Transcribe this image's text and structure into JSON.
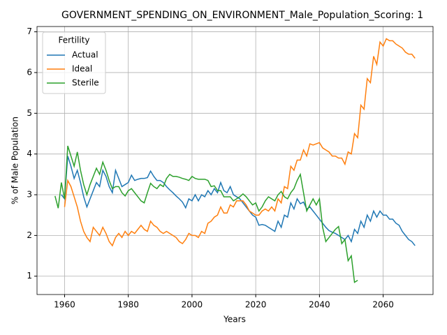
{
  "chart_data": {
    "type": "line",
    "title": "GOVERNMENT_SPENDING_ON_ENVIRONMENT_Male_Population_Scoring: 1",
    "xlabel": "Years",
    "ylabel": "% of Male Population",
    "legend_title": "Fertility",
    "legend": "upper left",
    "grid": true,
    "xlim": [
      1951.35,
      2075.65
    ],
    "xticks": [
      1960,
      1980,
      2000,
      2020,
      2040,
      2060
    ],
    "ylim": [
      0.55,
      7.13
    ],
    "yticks": [
      1,
      2,
      3,
      4,
      5,
      6,
      7
    ],
    "x": [
      1957,
      1958,
      1959,
      1960,
      1961,
      1962,
      1963,
      1964,
      1965,
      1966,
      1967,
      1968,
      1969,
      1970,
      1971,
      1972,
      1973,
      1974,
      1975,
      1976,
      1977,
      1978,
      1979,
      1980,
      1981,
      1982,
      1983,
      1984,
      1985,
      1986,
      1987,
      1988,
      1989,
      1990,
      1991,
      1992,
      1993,
      1994,
      1995,
      1996,
      1997,
      1998,
      1999,
      2000,
      2001,
      2002,
      2003,
      2004,
      2005,
      2006,
      2007,
      2008,
      2009,
      2010,
      2011,
      2012,
      2013,
      2014,
      2015,
      2016,
      2017,
      2018,
      2019,
      2020,
      2021,
      2022,
      2023,
      2024,
      2025,
      2026,
      2027,
      2028,
      2029,
      2030,
      2031,
      2032,
      2033,
      2034,
      2035,
      2036,
      2037,
      2038,
      2039,
      2040,
      2041,
      2042,
      2043,
      2044,
      2045,
      2046,
      2047,
      2048,
      2049,
      2050,
      2051,
      2052,
      2053,
      2054,
      2055,
      2056,
      2057,
      2058,
      2059,
      2060,
      2061,
      2062,
      2063,
      2064,
      2065,
      2066,
      2067,
      2068,
      2069,
      2070
    ],
    "series": [
      {
        "name": "Actual",
        "color": "#1f77b4",
        "values": [
          null,
          null,
          3.0,
          2.9,
          3.95,
          3.7,
          3.4,
          3.6,
          3.3,
          2.95,
          2.7,
          2.9,
          3.1,
          3.3,
          3.2,
          3.6,
          3.45,
          3.2,
          3.05,
          3.6,
          3.4,
          3.2,
          3.25,
          3.3,
          3.48,
          3.35,
          3.38,
          3.4,
          3.4,
          3.42,
          3.58,
          3.45,
          3.35,
          3.35,
          3.3,
          3.2,
          3.12,
          3.05,
          2.97,
          2.9,
          2.82,
          2.68,
          2.9,
          2.85,
          3.0,
          2.85,
          3.0,
          2.95,
          3.1,
          3.0,
          3.15,
          3.05,
          3.3,
          3.1,
          3.05,
          3.2,
          3.0,
          2.95,
          2.9,
          2.8,
          2.7,
          2.6,
          2.5,
          2.45,
          2.25,
          2.27,
          2.25,
          2.2,
          2.15,
          2.1,
          2.35,
          2.2,
          2.5,
          2.45,
          2.8,
          2.65,
          2.9,
          2.78,
          2.82,
          2.65,
          2.7,
          2.6,
          2.5,
          2.4,
          2.3,
          2.2,
          2.12,
          2.08,
          2.05,
          2.0,
          1.95,
          1.9,
          2.0,
          1.85,
          2.15,
          2.05,
          2.35,
          2.2,
          2.5,
          2.35,
          2.6,
          2.45,
          2.6,
          2.5,
          2.5,
          2.4,
          2.4,
          2.3,
          2.25,
          2.1,
          2.0,
          1.9,
          1.85,
          1.75
        ]
      },
      {
        "name": "Ideal",
        "color": "#ff7f0e",
        "values": [
          null,
          null,
          null,
          2.7,
          3.35,
          3.2,
          2.95,
          2.7,
          2.35,
          2.1,
          1.95,
          1.85,
          2.2,
          2.1,
          2.0,
          2.2,
          2.05,
          1.85,
          1.75,
          1.95,
          2.05,
          1.95,
          2.1,
          2.0,
          2.1,
          2.05,
          2.15,
          2.25,
          2.15,
          2.1,
          2.35,
          2.25,
          2.2,
          2.1,
          2.05,
          2.1,
          2.05,
          2.0,
          1.95,
          1.85,
          1.8,
          1.9,
          2.05,
          2.0,
          2.0,
          1.95,
          2.1,
          2.05,
          2.3,
          2.35,
          2.45,
          2.5,
          2.7,
          2.55,
          2.55,
          2.75,
          2.7,
          2.85,
          2.85,
          2.85,
          2.75,
          2.6,
          2.55,
          2.5,
          2.5,
          2.6,
          2.65,
          2.6,
          2.7,
          2.6,
          2.9,
          2.8,
          3.2,
          3.15,
          3.7,
          3.6,
          3.85,
          3.85,
          4.1,
          3.95,
          4.25,
          4.22,
          4.25,
          4.28,
          4.15,
          4.1,
          4.05,
          3.95,
          3.95,
          3.9,
          3.9,
          3.75,
          4.05,
          4.0,
          4.5,
          4.4,
          5.2,
          5.1,
          5.85,
          5.75,
          6.4,
          6.2,
          6.75,
          6.65,
          6.83,
          6.78,
          6.78,
          6.7,
          6.65,
          6.6,
          6.5,
          6.45,
          6.45,
          6.35
        ]
      },
      {
        "name": "Sterile",
        "color": "#2ca02c",
        "values": [
          2.97,
          2.67,
          3.3,
          2.9,
          4.2,
          3.95,
          3.7,
          4.05,
          3.6,
          3.25,
          3.0,
          3.25,
          3.45,
          3.65,
          3.5,
          3.8,
          3.6,
          3.35,
          3.15,
          3.2,
          3.2,
          3.05,
          2.97,
          3.1,
          3.15,
          3.05,
          2.95,
          2.85,
          2.8,
          3.05,
          3.28,
          3.2,
          3.15,
          3.25,
          3.2,
          3.4,
          3.5,
          3.45,
          3.45,
          3.43,
          3.4,
          3.38,
          3.35,
          3.45,
          3.4,
          3.38,
          3.38,
          3.38,
          3.35,
          3.2,
          3.22,
          3.1,
          3.1,
          2.95,
          2.95,
          2.95,
          2.85,
          2.9,
          2.95,
          3.02,
          2.95,
          2.85,
          2.75,
          2.8,
          2.6,
          2.7,
          2.85,
          2.95,
          2.9,
          2.85,
          3.0,
          3.08,
          2.95,
          2.9,
          3.05,
          3.15,
          3.35,
          3.5,
          3.05,
          2.6,
          2.75,
          2.9,
          2.75,
          2.9,
          2.2,
          1.85,
          1.95,
          2.05,
          2.15,
          2.22,
          1.8,
          1.9,
          1.38,
          1.5,
          0.85,
          0.9,
          null,
          null,
          null,
          null,
          null,
          null,
          null,
          null,
          null,
          null,
          null,
          null,
          null,
          null,
          null,
          null,
          null,
          null
        ]
      }
    ]
  }
}
